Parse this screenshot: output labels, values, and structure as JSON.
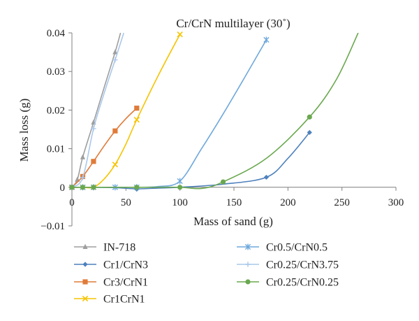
{
  "chart_data": {
    "type": "scatter",
    "title": "Cr/CrN multilayer (30˚)",
    "xlabel": "Mass of sand (g)",
    "ylabel": "Mass loss (g)",
    "xlim": [
      0,
      300
    ],
    "ylim": [
      -0.01,
      0.04
    ],
    "x_ticks": [
      0,
      50,
      100,
      150,
      200,
      250,
      300
    ],
    "y_ticks": [
      -0.01,
      0,
      0.01,
      0.02,
      0.03,
      0.04
    ],
    "x_tick_labels": [
      "0",
      "50",
      "100",
      "150",
      "200",
      "250",
      "300"
    ],
    "y_tick_labels": [
      "−0.01",
      "0",
      "0.01",
      "0.02",
      "0.03",
      "0.04"
    ],
    "grid": false,
    "legend_position": "bottom",
    "series": [
      {
        "name": "IN-718",
        "color": "#9e9e9e",
        "marker": "triangle",
        "x": [
          0,
          5,
          10,
          20,
          40
        ],
        "y": [
          0,
          0.002,
          0.0078,
          0.0168,
          0.035
        ],
        "curve_x": [
          0,
          5,
          10,
          20,
          30,
          40,
          45
        ],
        "curve_y": [
          0,
          0.002,
          0.0078,
          0.0168,
          0.026,
          0.035,
          0.04
        ]
      },
      {
        "name": "Cr1/CrN3",
        "color": "#4e81bd",
        "marker": "diamond",
        "x": [
          0,
          10,
          20,
          60,
          100,
          180,
          220
        ],
        "y": [
          0,
          0,
          0,
          -0.0005,
          0,
          0.0026,
          0.0142
        ],
        "curve_x": [
          0,
          10,
          20,
          40,
          60,
          80,
          100,
          140,
          180,
          200,
          220
        ],
        "curve_y": [
          0,
          0,
          0,
          -0.0001,
          -0.0004,
          -0.0002,
          0,
          0.0008,
          0.0026,
          0.0075,
          0.0142
        ]
      },
      {
        "name": "Cr3/CrN1",
        "color": "#e07b39",
        "marker": "square",
        "x": [
          0,
          10,
          20,
          40,
          60
        ],
        "y": [
          0,
          0.0028,
          0.0067,
          0.0146,
          0.0205
        ],
        "curve_x": [
          0,
          10,
          20,
          30,
          40,
          50,
          60
        ],
        "curve_y": [
          0,
          0.0028,
          0.0067,
          0.0108,
          0.0146,
          0.0178,
          0.0205
        ]
      },
      {
        "name": "Cr1CrN1",
        "color": "#f5c400",
        "marker": "x",
        "x": [
          0,
          10,
          20,
          40,
          60,
          100
        ],
        "y": [
          0,
          0,
          0,
          0.0059,
          0.0175,
          0.0396
        ],
        "curve_x": [
          0,
          10,
          20,
          30,
          40,
          50,
          60,
          80,
          100
        ],
        "curve_y": [
          0,
          0,
          0,
          0.0022,
          0.0059,
          0.0112,
          0.0175,
          0.029,
          0.0396
        ]
      },
      {
        "name": "Cr0.5/CrN0.5",
        "color": "#6fa8dc",
        "marker": "asterisk",
        "x": [
          0,
          10,
          20,
          40,
          60,
          100,
          180
        ],
        "y": [
          0,
          0,
          0,
          0,
          0,
          0.0016,
          0.0382
        ],
        "curve_x": [
          0,
          10,
          20,
          40,
          60,
          80,
          100,
          120,
          140,
          160,
          180
        ],
        "curve_y": [
          0,
          0,
          0,
          0,
          0,
          0.0002,
          0.0016,
          0.01,
          0.019,
          0.0285,
          0.0382
        ]
      },
      {
        "name": "Cr0.25/CrN3.75",
        "color": "#a9c8ea",
        "marker": "plus",
        "x": [
          0,
          10,
          20,
          40
        ],
        "y": [
          0,
          0.0025,
          0.0152,
          0.033
        ],
        "curve_x": [
          0,
          10,
          20,
          30,
          40,
          48
        ],
        "curve_y": [
          0,
          0.0025,
          0.0152,
          0.0245,
          0.033,
          0.04
        ]
      },
      {
        "name": "Cr0.25/CrN0.25",
        "color": "#6aa84f",
        "marker": "circle",
        "x": [
          0,
          10,
          20,
          60,
          100,
          140,
          220
        ],
        "y": [
          0,
          0,
          0,
          0,
          0,
          0.0014,
          0.0182
        ],
        "curve_x": [
          0,
          10,
          20,
          60,
          100,
          120,
          140,
          180,
          220,
          245,
          265
        ],
        "curve_y": [
          0,
          0,
          0,
          0,
          0,
          -0.0003,
          0.0014,
          0.0075,
          0.0182,
          0.028,
          0.04
        ]
      }
    ]
  }
}
